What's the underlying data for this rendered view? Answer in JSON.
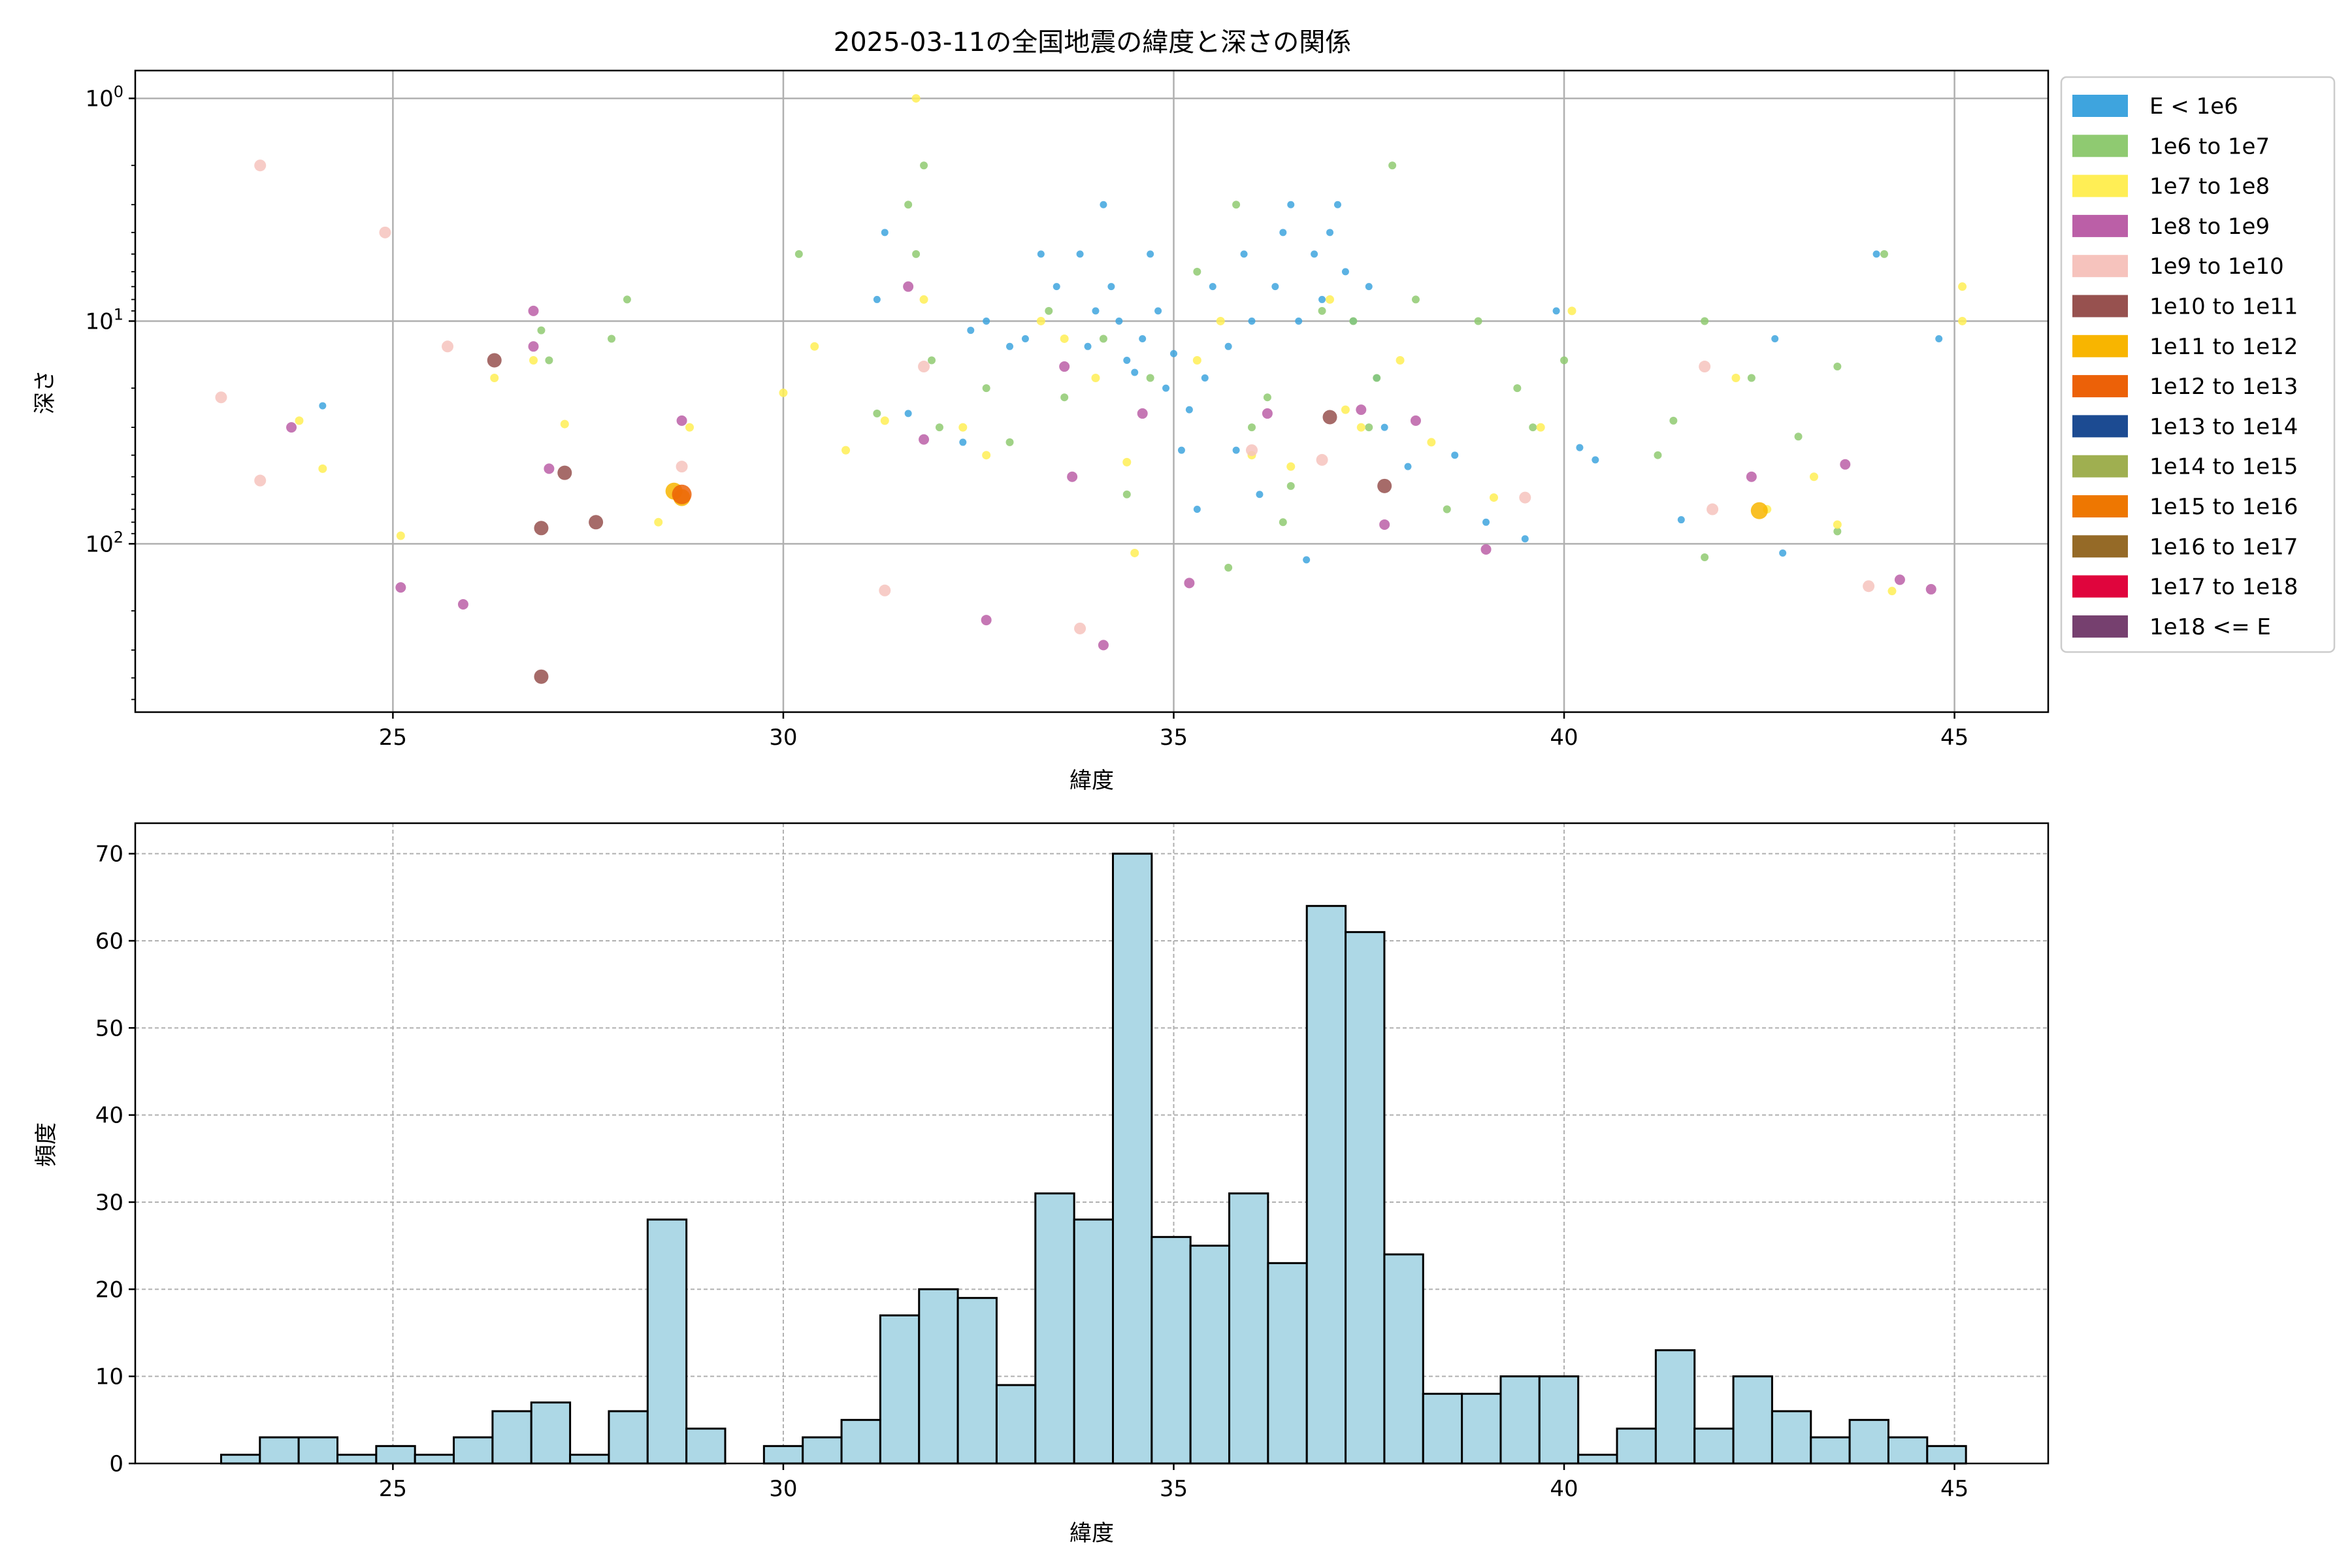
{
  "chart_data": [
    {
      "type": "scatter",
      "title": "2025-03-11の全国地震の緯度と深さの関係",
      "xlabel": "緯度",
      "ylabel": "深さ",
      "xlim": [
        21.7,
        46.2
      ],
      "ylim": [
        570,
        0.75
      ],
      "yscale": "log (inverted)",
      "grid": true,
      "x_ticks": [
        25,
        30,
        35,
        40,
        45
      ],
      "y_ticks": [
        {
          "value": 1,
          "label": "10^0",
          "base": "10",
          "exp": "0"
        },
        {
          "value": 10,
          "label": "10^1",
          "base": "10",
          "exp": "1"
        },
        {
          "value": 100,
          "label": "10^2",
          "base": "10",
          "exp": "2"
        }
      ],
      "legend_position": "outside right",
      "legend": [
        {
          "label": "E < 1e6",
          "color": "#3ea4de"
        },
        {
          "label": "1e6 to 1e7",
          "color": "#8fca71"
        },
        {
          "label": "1e7 to 1e8",
          "color": "#ffee55"
        },
        {
          "label": "1e8 to 1e9",
          "color": "#bb5fa7"
        },
        {
          "label": "1e9 to 1e10",
          "color": "#f6c3bd"
        },
        {
          "label": "1e10 to 1e11",
          "color": "#97514f"
        },
        {
          "label": "1e11 to 1e12",
          "color": "#f8b500"
        },
        {
          "label": "1e12 to 1e13",
          "color": "#ec6108"
        },
        {
          "label": "1e13 to 1e14",
          "color": "#1c4b92"
        },
        {
          "label": "1e14 to 1e15",
          "color": "#9faf50"
        },
        {
          "label": "1e15 to 1e16",
          "color": "#ee7701"
        },
        {
          "label": "1e16 to 1e17",
          "color": "#956a27"
        },
        {
          "label": "1e17 to 1e18",
          "color": "#e0053d"
        },
        {
          "label": "1e18 <= E",
          "color": "#76406f"
        }
      ],
      "series": [
        {
          "class": 0,
          "points": [
            [
              24.1,
              24
            ],
            [
              31.3,
              4
            ],
            [
              31.6,
              26
            ],
            [
              31.2,
              8
            ],
            [
              32.4,
              11
            ],
            [
              32.6,
              10
            ],
            [
              32.9,
              13
            ],
            [
              33.1,
              12
            ],
            [
              33.5,
              7
            ],
            [
              33.8,
              5
            ],
            [
              33.9,
              13
            ],
            [
              34.0,
              9
            ],
            [
              34.1,
              3
            ],
            [
              34.3,
              10
            ],
            [
              34.4,
              15
            ],
            [
              34.2,
              7
            ],
            [
              34.5,
              17
            ],
            [
              34.6,
              12
            ],
            [
              34.8,
              9
            ],
            [
              34.9,
              20
            ],
            [
              35.0,
              14
            ],
            [
              35.1,
              38
            ],
            [
              35.2,
              25
            ],
            [
              35.4,
              18
            ],
            [
              35.5,
              7
            ],
            [
              35.7,
              13
            ],
            [
              35.8,
              38
            ],
            [
              35.9,
              5
            ],
            [
              36.0,
              10
            ],
            [
              36.1,
              60
            ],
            [
              36.3,
              7
            ],
            [
              36.4,
              4
            ],
            [
              36.5,
              3
            ],
            [
              36.6,
              10
            ],
            [
              36.8,
              5
            ],
            [
              36.9,
              8
            ],
            [
              37.0,
              4
            ],
            [
              37.1,
              3
            ],
            [
              37.2,
              6
            ],
            [
              37.3,
              10
            ],
            [
              37.5,
              7
            ],
            [
              37.6,
              18
            ],
            [
              37.7,
              30
            ],
            [
              38.0,
              45
            ],
            [
              38.6,
              40
            ],
            [
              39.0,
              80
            ],
            [
              39.5,
              95
            ],
            [
              39.9,
              9
            ],
            [
              40.2,
              37
            ],
            [
              40.4,
              42
            ],
            [
              41.5,
              78
            ],
            [
              42.7,
              12
            ],
            [
              42.8,
              110
            ],
            [
              44.0,
              5
            ],
            [
              44.8,
              12
            ],
            [
              33.3,
              5
            ],
            [
              32.3,
              35
            ],
            [
              35.3,
              70
            ],
            [
              36.7,
              118
            ],
            [
              34.7,
              5
            ]
          ]
        },
        {
          "class": 1,
          "points": [
            [
              26.9,
              11
            ],
            [
              27.0,
              15
            ],
            [
              28.0,
              8
            ],
            [
              27.8,
              12
            ],
            [
              31.2,
              26
            ],
            [
              31.7,
              5
            ],
            [
              31.8,
              2
            ],
            [
              31.9,
              15
            ],
            [
              32.0,
              30
            ],
            [
              32.6,
              20
            ],
            [
              32.9,
              35
            ],
            [
              33.4,
              9
            ],
            [
              33.6,
              22
            ],
            [
              34.1,
              12
            ],
            [
              34.4,
              60
            ],
            [
              34.7,
              18
            ],
            [
              35.3,
              6
            ],
            [
              35.8,
              3
            ],
            [
              36.0,
              30
            ],
            [
              36.2,
              22
            ],
            [
              36.5,
              55
            ],
            [
              36.9,
              9
            ],
            [
              37.3,
              10
            ],
            [
              37.5,
              30
            ],
            [
              37.6,
              18
            ],
            [
              37.8,
              2
            ],
            [
              38.1,
              8
            ],
            [
              38.5,
              70
            ],
            [
              38.9,
              10
            ],
            [
              39.4,
              20
            ],
            [
              39.6,
              30
            ],
            [
              40.0,
              15
            ],
            [
              41.2,
              40
            ],
            [
              41.4,
              28
            ],
            [
              41.8,
              10
            ],
            [
              42.4,
              18
            ],
            [
              43.0,
              33
            ],
            [
              43.5,
              16
            ],
            [
              43.5,
              88
            ],
            [
              44.1,
              5
            ],
            [
              41.8,
              115
            ],
            [
              35.7,
              128
            ],
            [
              36.4,
              80
            ],
            [
              30.2,
              5
            ],
            [
              31.6,
              3
            ]
          ]
        },
        {
          "class": 2,
          "points": [
            [
              23.8,
              28
            ],
            [
              24.1,
              46
            ],
            [
              25.1,
              92
            ],
            [
              26.3,
              18
            ],
            [
              26.8,
              15
            ],
            [
              27.2,
              29
            ],
            [
              28.4,
              80
            ],
            [
              28.8,
              30
            ],
            [
              30.0,
              21
            ],
            [
              30.4,
              13
            ],
            [
              30.8,
              38
            ],
            [
              31.3,
              28
            ],
            [
              31.7,
              1
            ],
            [
              31.8,
              8
            ],
            [
              32.3,
              30
            ],
            [
              32.6,
              40
            ],
            [
              33.3,
              10
            ],
            [
              33.6,
              12
            ],
            [
              34.0,
              18
            ],
            [
              34.4,
              43
            ],
            [
              34.5,
              110
            ],
            [
              35.3,
              15
            ],
            [
              35.6,
              10
            ],
            [
              36.0,
              40
            ],
            [
              36.5,
              45
            ],
            [
              37.0,
              8
            ],
            [
              37.2,
              25
            ],
            [
              37.4,
              30
            ],
            [
              37.9,
              15
            ],
            [
              38.3,
              35
            ],
            [
              39.1,
              62
            ],
            [
              39.7,
              30
            ],
            [
              40.1,
              9
            ],
            [
              42.2,
              18
            ],
            [
              42.6,
              70
            ],
            [
              43.2,
              50
            ],
            [
              43.5,
              82
            ],
            [
              44.2,
              163
            ],
            [
              45.1,
              7
            ],
            [
              45.1,
              10
            ]
          ]
        },
        {
          "class": 3,
          "points": [
            [
              23.7,
              30
            ],
            [
              26.8,
              9
            ],
            [
              27.0,
              46
            ],
            [
              25.1,
              157
            ],
            [
              25.9,
              187
            ],
            [
              31.6,
              7
            ],
            [
              31.8,
              34
            ],
            [
              32.6,
              220
            ],
            [
              33.6,
              16
            ],
            [
              33.7,
              50
            ],
            [
              34.1,
              285
            ],
            [
              34.6,
              26
            ],
            [
              35.2,
              150
            ],
            [
              36.2,
              26
            ],
            [
              37.4,
              25
            ],
            [
              37.7,
              82
            ],
            [
              38.1,
              28
            ],
            [
              39.0,
              106
            ],
            [
              42.4,
              50
            ],
            [
              43.6,
              44
            ],
            [
              44.3,
              145
            ],
            [
              44.7,
              160
            ],
            [
              26.8,
              13
            ],
            [
              28.7,
              28
            ]
          ]
        },
        {
          "class": 4,
          "points": [
            [
              22.8,
              22
            ],
            [
              23.3,
              2
            ],
            [
              23.3,
              52
            ],
            [
              25.7,
              13
            ],
            [
              28.7,
              45
            ],
            [
              31.8,
              16
            ],
            [
              31.3,
              162
            ],
            [
              33.8,
              240
            ],
            [
              36.0,
              38
            ],
            [
              36.9,
              42
            ],
            [
              39.5,
              62
            ],
            [
              41.9,
              70
            ],
            [
              43.9,
              155
            ],
            [
              41.8,
              16
            ],
            [
              24.9,
              4
            ]
          ]
        },
        {
          "class": 5,
          "points": [
            [
              26.3,
              15
            ],
            [
              26.9,
              85
            ],
            [
              27.2,
              48
            ],
            [
              27.6,
              80
            ],
            [
              26.9,
              395
            ],
            [
              37.7,
              55
            ],
            [
              37.0,
              27
            ]
          ]
        },
        {
          "class": 6,
          "points": [
            [
              28.7,
              62
            ],
            [
              28.6,
              58
            ],
            [
              42.5,
              71
            ]
          ]
        },
        {
          "class": 7,
          "points": [
            [
              28.7,
              60
            ]
          ]
        }
      ]
    },
    {
      "type": "bar",
      "title": "",
      "xlabel": "緯度",
      "ylabel": "頻度",
      "xlim": [
        21.7,
        46.2
      ],
      "ylim": [
        0,
        73.5
      ],
      "x_ticks": [
        25,
        30,
        35,
        40,
        45
      ],
      "y_ticks": [
        0,
        10,
        20,
        30,
        40,
        50,
        60,
        70
      ],
      "grid": "dashed",
      "bar_color": "#add8e6",
      "bins_start": 22.8,
      "bin_width": 0.4966,
      "values": [
        1,
        3,
        3,
        1,
        2,
        1,
        3,
        6,
        7,
        1,
        6,
        28,
        4,
        0,
        2,
        3,
        5,
        17,
        20,
        19,
        9,
        31,
        28,
        70,
        26,
        25,
        31,
        23,
        64,
        61,
        24,
        8,
        8,
        10,
        10,
        1,
        4,
        13,
        4,
        10,
        6,
        3,
        5,
        3,
        2
      ]
    }
  ]
}
